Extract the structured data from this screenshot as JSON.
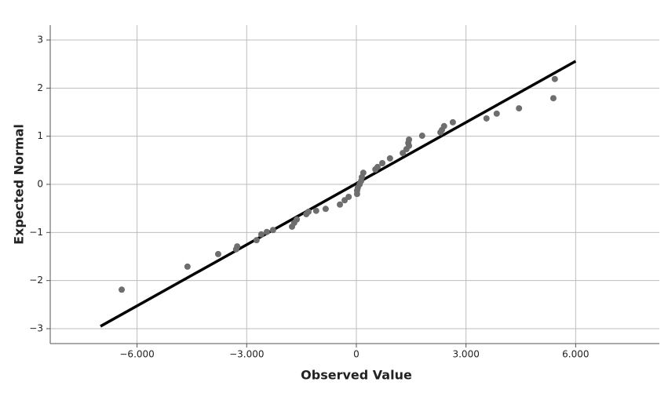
{
  "chart_data": {
    "type": "scatter",
    "x_label": "Observed Value",
    "y_label": "Expected Normal",
    "xlim": [
      -8.375,
      8.29
    ],
    "ylim": [
      -3.31,
      3.31
    ],
    "xticks": [
      {
        "value": -6,
        "label": "−6.000"
      },
      {
        "value": -3,
        "label": "−3.000"
      },
      {
        "value": 0,
        "label": "0"
      },
      {
        "value": 3,
        "label": "3.000"
      },
      {
        "value": 6,
        "label": "6.000"
      }
    ],
    "yticks": [
      {
        "value": -3,
        "label": "−3"
      },
      {
        "value": -2,
        "label": "−2"
      },
      {
        "value": -1,
        "label": "−1"
      },
      0,
      1,
      2,
      3
    ],
    "grid": true,
    "color": "#6e6e6e",
    "x": [
      -6.42,
      -4.62,
      -3.78,
      -3.26,
      -3.29,
      -2.73,
      -2.6,
      -2.45,
      -2.28,
      -1.76,
      -1.7,
      -1.63,
      -1.37,
      -1.31,
      -1.1,
      -0.84,
      -0.45,
      -0.32,
      -0.21,
      0.02,
      0.02,
      0.04,
      0.09,
      0.13,
      0.15,
      0.19,
      0.52,
      0.58,
      0.71,
      0.92,
      1.27,
      1.37,
      1.44,
      1.42,
      1.44,
      1.8,
      2.3,
      2.34,
      2.4,
      2.64,
      3.56,
      3.84,
      4.45,
      5.39,
      5.43
    ],
    "values": [
      -2.19,
      -1.71,
      -1.45,
      -1.29,
      -1.35,
      -1.16,
      -1.04,
      -0.99,
      -0.95,
      -0.88,
      -0.8,
      -0.73,
      -0.62,
      -0.57,
      -0.55,
      -0.51,
      -0.42,
      -0.33,
      -0.26,
      -0.2,
      -0.13,
      -0.07,
      0.0,
      0.07,
      0.15,
      0.24,
      0.31,
      0.36,
      0.44,
      0.54,
      0.65,
      0.73,
      0.8,
      0.86,
      0.93,
      1.01,
      1.08,
      1.13,
      1.21,
      1.29,
      1.37,
      1.47,
      1.58,
      1.79,
      2.19
    ],
    "reference_line": {
      "x": [
        -7,
        6
      ],
      "y": [
        -2.95,
        2.56
      ],
      "color": "#000000"
    }
  }
}
